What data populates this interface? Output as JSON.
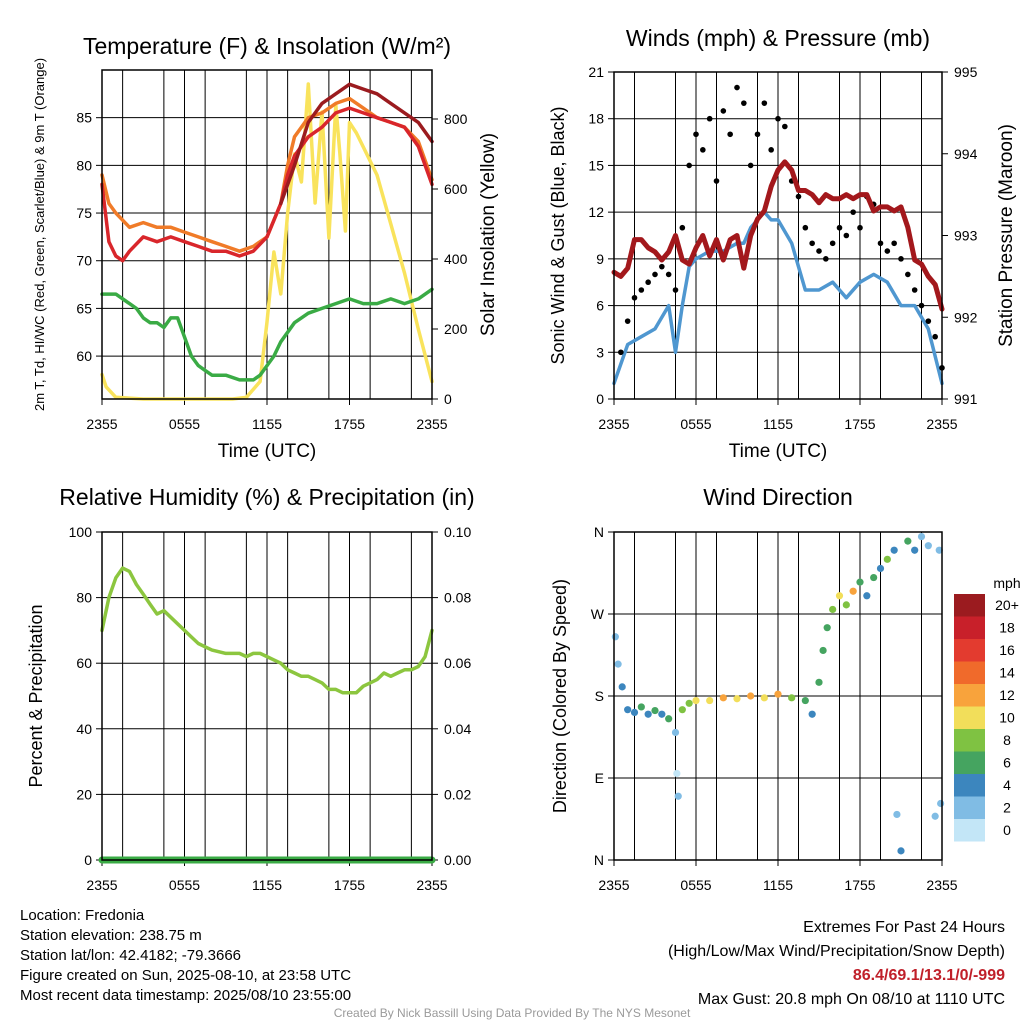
{
  "chart_data": [
    {
      "id": "temp",
      "type": "line",
      "title": "Temperature (F) & Insolation (W/m²)",
      "xlabel": "Time (UTC)",
      "ylabel": "2m T, Td, HI/WC (Red, Green, Scarlet/Blue) & 9m T (Orange)",
      "ylabel_right": "Solar Insolation (Yellow)",
      "x_ticks": [
        "2355",
        "0555",
        "1155",
        "1755",
        "2355"
      ],
      "y_ticks": [
        "60",
        "65",
        "70",
        "75",
        "80",
        "85"
      ],
      "y_ticks_right": [
        "0",
        "200",
        "400",
        "600",
        "800"
      ],
      "ylim": [
        55.5,
        90
      ],
      "ylim_right": [
        0,
        940
      ],
      "grid": true,
      "series": [
        {
          "color": "#f9e35c",
          "axis": "right",
          "x": [
            0,
            0.3,
            1,
            3,
            6,
            8,
            9.5,
            10.5,
            11.5,
            12,
            12.5,
            13,
            13.5,
            14,
            14.5,
            15,
            15.5,
            16,
            16.5,
            17,
            17.3,
            17.7,
            18,
            18.5,
            19,
            20,
            21,
            22,
            23,
            24
          ],
          "values": [
            70,
            35,
            5,
            0,
            0,
            0,
            0,
            5,
            50,
            220,
            420,
            300,
            530,
            700,
            620,
            900,
            560,
            820,
            460,
            840,
            700,
            480,
            790,
            760,
            720,
            640,
            500,
            360,
            200,
            50
          ]
        },
        {
          "color": "#f07b28",
          "axis": "left",
          "x": [
            0,
            0.5,
            1,
            2,
            3,
            4,
            5,
            6,
            7,
            8,
            9,
            10,
            11,
            12,
            13,
            13.5,
            14,
            15,
            16,
            17,
            18,
            19,
            20,
            21,
            22,
            23,
            24
          ],
          "values": [
            79,
            76,
            75,
            73.5,
            74,
            73.5,
            73.5,
            73,
            72.5,
            72,
            71.5,
            71,
            71.5,
            72.5,
            76,
            80,
            83,
            85,
            85.5,
            86.5,
            87,
            86,
            85,
            84.5,
            84,
            82.5,
            78.5
          ]
        },
        {
          "color": "#d9262b",
          "axis": "left",
          "x": [
            0,
            0.5,
            1,
            1.5,
            2,
            3,
            4,
            5,
            6,
            7,
            8,
            9,
            10,
            11,
            12,
            13,
            13.5,
            14,
            15,
            16,
            17,
            18,
            19,
            20,
            21,
            22,
            23,
            24
          ],
          "values": [
            78,
            72,
            70.5,
            70,
            71,
            72.5,
            72,
            72.5,
            72,
            71.5,
            71,
            71,
            70.5,
            71,
            72.5,
            76,
            79,
            81,
            83,
            84,
            85.5,
            86,
            85.5,
            85,
            84.5,
            84,
            82,
            78
          ]
        },
        {
          "color": "#9b1b1f",
          "axis": "left",
          "x": [
            13,
            14,
            15,
            16,
            17,
            18,
            19,
            20,
            21,
            22,
            23,
            24
          ],
          "values": [
            76,
            80,
            84.5,
            86.5,
            87.5,
            88.5,
            88,
            87.5,
            86.5,
            85.5,
            84.5,
            82.5
          ]
        },
        {
          "color": "#3aab45",
          "axis": "left",
          "x": [
            0,
            1,
            2,
            2.5,
            3,
            3.5,
            4,
            4.5,
            5,
            5.5,
            6,
            6.5,
            7,
            7.5,
            8,
            9,
            10,
            11,
            11.5,
            12,
            12.5,
            13,
            14,
            15,
            16,
            17,
            18,
            19,
            20,
            21,
            22,
            23,
            24
          ],
          "values": [
            66.5,
            66.5,
            65.5,
            65,
            64,
            63.5,
            63.5,
            63,
            64,
            64,
            62,
            60,
            59,
            58.5,
            58,
            58,
            57.5,
            57.5,
            58,
            59,
            60,
            61.5,
            63.5,
            64.5,
            65,
            65.5,
            66,
            65.5,
            65.5,
            66,
            65.5,
            66,
            67
          ]
        }
      ]
    },
    {
      "id": "wind",
      "type": "line",
      "title": "Winds (mph) & Pressure (mb)",
      "xlabel": "Time (UTC)",
      "ylabel": "Sonic Wind & Gust (Blue, Black)",
      "ylabel_right": "Station Pressure (Maroon)",
      "x_ticks": [
        "2355",
        "0555",
        "1155",
        "1755",
        "2355"
      ],
      "y_ticks": [
        "0",
        "3",
        "6",
        "9",
        "12",
        "15",
        "18",
        "21"
      ],
      "y_ticks_right": [
        "991",
        "992",
        "993",
        "994",
        "995"
      ],
      "ylim": [
        0,
        21
      ],
      "ylim_right": [
        991,
        995
      ],
      "grid": true,
      "series": [
        {
          "color": "#4f97d0",
          "type": "line",
          "x": [
            0,
            1,
            2,
            3,
            4,
            4.5,
            5,
            5.5,
            6,
            7,
            8,
            9,
            9.5,
            10,
            11,
            11.5,
            12,
            13,
            14,
            15,
            16,
            17,
            18,
            19,
            20,
            21,
            22,
            23,
            24
          ],
          "values": [
            1,
            3.5,
            4,
            4.5,
            6,
            3,
            6,
            8.5,
            9,
            9.5,
            9.5,
            10,
            10,
            11,
            12,
            11.5,
            11.5,
            10,
            7,
            7,
            7.5,
            6.5,
            7.5,
            8,
            7.5,
            6,
            6,
            4.5,
            1
          ]
        },
        {
          "color": "#000000",
          "type": "scatter",
          "x": [
            0.5,
            1,
            1.5,
            2,
            2.5,
            3,
            3.5,
            4,
            4.5,
            5,
            5.5,
            6,
            6.5,
            7,
            7.5,
            8,
            8.5,
            9,
            9.5,
            10,
            10.5,
            11,
            11.5,
            12,
            12.5,
            13,
            13.5,
            14,
            14.5,
            15,
            15.5,
            16,
            16.5,
            17,
            17.5,
            18,
            18.5,
            19,
            19.5,
            20,
            20.5,
            21,
            21.5,
            22,
            22.5,
            23,
            23.5,
            24
          ],
          "values": [
            3,
            5,
            6.5,
            7,
            7.5,
            8,
            8.5,
            8,
            7,
            11,
            15,
            17,
            16,
            18,
            14,
            18.5,
            17,
            20,
            19,
            15,
            17,
            19,
            16,
            18,
            17.5,
            14,
            13,
            11,
            10,
            9.5,
            9,
            10,
            11,
            10.5,
            12,
            11,
            13,
            12.5,
            10,
            9.5,
            10,
            9,
            8,
            7,
            6,
            5,
            4,
            2
          ]
        },
        {
          "color": "#a3181c",
          "type": "line",
          "axis": "right",
          "x": [
            0,
            0.5,
            1,
            1.5,
            2,
            2.5,
            3,
            3.5,
            4,
            4.5,
            5,
            5.5,
            6,
            6.5,
            7,
            7.5,
            8,
            8.5,
            9,
            9.5,
            10,
            10.5,
            11,
            11.5,
            12,
            12.5,
            13,
            13.5,
            14,
            14.5,
            15,
            15.5,
            16,
            16.5,
            17,
            17.5,
            18,
            18.5,
            19,
            19.5,
            20,
            20.5,
            21,
            21.5,
            22,
            22.5,
            23,
            23.5,
            24
          ],
          "values": [
            992.55,
            992.5,
            992.6,
            992.95,
            992.95,
            992.85,
            992.8,
            992.7,
            992.8,
            993.0,
            992.7,
            992.65,
            992.85,
            993.0,
            992.75,
            992.95,
            992.7,
            992.95,
            993.0,
            992.6,
            993.0,
            993.2,
            993.3,
            993.6,
            993.8,
            993.9,
            993.8,
            993.55,
            993.55,
            993.5,
            993.4,
            993.5,
            993.45,
            993.45,
            993.5,
            993.45,
            993.5,
            993.5,
            993.3,
            993.35,
            993.35,
            993.3,
            993.35,
            993.1,
            992.7,
            992.65,
            992.5,
            992.4,
            992.1
          ]
        }
      ]
    },
    {
      "id": "rh",
      "type": "line",
      "title": "Relative Humidity (%) & Precipitation (in)",
      "xlabel": "",
      "ylabel": "Percent & Precipitation",
      "x_ticks": [
        "2355",
        "0555",
        "1155",
        "1755",
        "2355"
      ],
      "y_ticks": [
        "0",
        "20",
        "40",
        "60",
        "80",
        "100"
      ],
      "y_ticks_right": [
        "0.00",
        "0.02",
        "0.04",
        "0.06",
        "0.08",
        "0.10"
      ],
      "ylim": [
        0,
        100
      ],
      "ylim_right": [
        0,
        0.1
      ],
      "grid": true,
      "series": [
        {
          "color": "#8cc63f",
          "x": [
            0,
            0.5,
            1,
            1.5,
            2,
            2.5,
            3,
            3.5,
            4,
            4.5,
            5,
            5.5,
            6,
            6.5,
            7,
            7.5,
            8,
            9,
            10,
            10.5,
            11,
            11.5,
            12,
            12.5,
            13,
            13.5,
            14,
            14.5,
            15,
            15.5,
            16,
            16.5,
            17,
            17.5,
            18,
            18.5,
            19,
            19.5,
            20,
            20.5,
            21,
            21.5,
            22,
            22.5,
            23,
            23.5,
            24
          ],
          "values": [
            70,
            80,
            86,
            89,
            88,
            84,
            81,
            78,
            75,
            76,
            74,
            72,
            70,
            68,
            66,
            65,
            64,
            63,
            63,
            62,
            63,
            63,
            62,
            61,
            60,
            58,
            57,
            56,
            56,
            55,
            54,
            52,
            52,
            51,
            51,
            51,
            53,
            54,
            55,
            57,
            56,
            57,
            58,
            58,
            59,
            62,
            70
          ]
        },
        {
          "color": "#3aab45",
          "x": [
            0,
            24
          ],
          "values": [
            0,
            0
          ]
        }
      ]
    },
    {
      "id": "dir",
      "type": "scatter",
      "title": "Wind Direction",
      "xlabel": "",
      "ylabel": "Direction (Colored By Speed)",
      "x_ticks": [
        "2355",
        "0555",
        "1155",
        "1755",
        "2355"
      ],
      "y_ticks": [
        "N",
        "E",
        "S",
        "W",
        "N"
      ],
      "ylim": [
        0,
        360
      ],
      "grid": true,
      "legend_title": "mph",
      "legend_labels": [
        "20+",
        "18",
        "16",
        "14",
        "12",
        "10",
        "8",
        "6",
        "4",
        "2",
        "0"
      ],
      "legend_colors": [
        "#9b1b1f",
        "#c8202a",
        "#e33b2f",
        "#f06a2b",
        "#f8a33c",
        "#f2de5a",
        "#7fc242",
        "#45a460",
        "#3c86be",
        "#80bce4",
        "#c3e6f7"
      ],
      "points": [
        {
          "x": 0.1,
          "y": 245,
          "c": "#80bce4"
        },
        {
          "x": 0.3,
          "y": 215,
          "c": "#80bce4"
        },
        {
          "x": 0.6,
          "y": 190,
          "c": "#3c86be"
        },
        {
          "x": 1,
          "y": 165,
          "c": "#3c86be"
        },
        {
          "x": 1.5,
          "y": 162,
          "c": "#3c86be"
        },
        {
          "x": 2,
          "y": 168,
          "c": "#45a460"
        },
        {
          "x": 2.5,
          "y": 160,
          "c": "#3c86be"
        },
        {
          "x": 3,
          "y": 164,
          "c": "#45a460"
        },
        {
          "x": 3.5,
          "y": 160,
          "c": "#3c86be"
        },
        {
          "x": 4,
          "y": 155,
          "c": "#45a460"
        },
        {
          "x": 4.5,
          "y": 140,
          "c": "#80bce4"
        },
        {
          "x": 4.6,
          "y": 95,
          "c": "#c3e6f7"
        },
        {
          "x": 4.7,
          "y": 70,
          "c": "#80bce4"
        },
        {
          "x": 5,
          "y": 165,
          "c": "#7fc242"
        },
        {
          "x": 5.5,
          "y": 172,
          "c": "#7fc242"
        },
        {
          "x": 6,
          "y": 175,
          "c": "#f2de5a"
        },
        {
          "x": 7,
          "y": 175,
          "c": "#f2de5a"
        },
        {
          "x": 8,
          "y": 178,
          "c": "#f8a33c"
        },
        {
          "x": 9,
          "y": 177,
          "c": "#f2de5a"
        },
        {
          "x": 10,
          "y": 180,
          "c": "#f8a33c"
        },
        {
          "x": 11,
          "y": 178,
          "c": "#f2de5a"
        },
        {
          "x": 12,
          "y": 182,
          "c": "#f8a33c"
        },
        {
          "x": 13,
          "y": 178,
          "c": "#7fc242"
        },
        {
          "x": 14,
          "y": 175,
          "c": "#45a460"
        },
        {
          "x": 14.5,
          "y": 160,
          "c": "#3c86be"
        },
        {
          "x": 15,
          "y": 195,
          "c": "#45a460"
        },
        {
          "x": 15.3,
          "y": 230,
          "c": "#45a460"
        },
        {
          "x": 15.6,
          "y": 255,
          "c": "#45a460"
        },
        {
          "x": 16,
          "y": 275,
          "c": "#7fc242"
        },
        {
          "x": 16.5,
          "y": 290,
          "c": "#f2de5a"
        },
        {
          "x": 17,
          "y": 280,
          "c": "#7fc242"
        },
        {
          "x": 17.5,
          "y": 295,
          "c": "#f8a33c"
        },
        {
          "x": 18,
          "y": 305,
          "c": "#45a460"
        },
        {
          "x": 18.5,
          "y": 290,
          "c": "#3c86be"
        },
        {
          "x": 19,
          "y": 310,
          "c": "#45a460"
        },
        {
          "x": 19.5,
          "y": 320,
          "c": "#3c86be"
        },
        {
          "x": 20,
          "y": 330,
          "c": "#7fc242"
        },
        {
          "x": 20.5,
          "y": 340,
          "c": "#3c86be"
        },
        {
          "x": 20.7,
          "y": 50,
          "c": "#80bce4"
        },
        {
          "x": 21,
          "y": 10,
          "c": "#3c86be"
        },
        {
          "x": 21.5,
          "y": 350,
          "c": "#45a460"
        },
        {
          "x": 22,
          "y": 340,
          "c": "#3c86be"
        },
        {
          "x": 22.5,
          "y": 355,
          "c": "#80bce4"
        },
        {
          "x": 23,
          "y": 345,
          "c": "#80bce4"
        },
        {
          "x": 23.5,
          "y": 48,
          "c": "#80bce4"
        },
        {
          "x": 23.8,
          "y": 340,
          "c": "#80bce4"
        },
        {
          "x": 23.9,
          "y": 62,
          "c": "#80bce4"
        }
      ]
    }
  ],
  "footer": {
    "location": "Location: Fredonia",
    "elevation": "Station elevation: 238.75 m",
    "latlon": "Station lat/lon: 42.4182; -79.3666",
    "created": "Figure created on Sun, 2025-08-10, at 23:58 UTC",
    "recent": "Most recent data timestamp: 2025/08/10 23:55:00",
    "extremes_title": "Extremes For Past 24 Hours",
    "extremes_subtitle": "(High/Low/Max Wind/Precipitation/Snow Depth)",
    "extremes_values": "86.4/69.1/13.1/0/-999",
    "max_gust": "Max Gust: 20.8 mph On 08/10 at 1110 UTC",
    "credit": "Created By Nick Bassill Using Data Provided By The NYS Mesonet"
  }
}
